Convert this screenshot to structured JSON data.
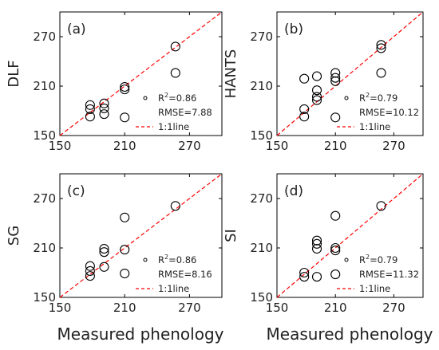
{
  "figure": {
    "xlabel_left": "Measured phenology",
    "xlabel_right": "Measured phenology"
  },
  "chart_data": [
    {
      "type": "scatter",
      "panel": "(a)",
      "ylabel": "DLF",
      "xlim": [
        150,
        300
      ],
      "ylim": [
        150,
        300
      ],
      "xticks": [
        150,
        210,
        270
      ],
      "yticks": [
        150,
        210,
        270
      ],
      "points": [
        [
          178,
          182
        ],
        [
          178,
          187
        ],
        [
          178,
          173
        ],
        [
          191,
          176
        ],
        [
          191,
          183
        ],
        [
          191,
          189
        ],
        [
          210,
          209
        ],
        [
          210,
          206
        ],
        [
          210,
          172
        ],
        [
          257,
          258
        ],
        [
          257,
          226
        ]
      ],
      "r2_sup": "2",
      "r2": "R",
      "r2_value": "=0.86",
      "rmse": "RMSE=7.88",
      "line_label": "1:1line"
    },
    {
      "type": "scatter",
      "panel": "(b)",
      "ylabel": "HANTS",
      "xlim": [
        150,
        300
      ],
      "ylim": [
        150,
        300
      ],
      "xticks": [
        150,
        210,
        270
      ],
      "yticks": [
        150,
        210,
        270
      ],
      "points": [
        [
          178,
          173
        ],
        [
          178,
          182
        ],
        [
          178,
          219
        ],
        [
          191,
          193
        ],
        [
          191,
          197
        ],
        [
          191,
          205
        ],
        [
          191,
          222
        ],
        [
          210,
          216
        ],
        [
          210,
          220
        ],
        [
          210,
          226
        ],
        [
          210,
          172
        ],
        [
          257,
          256
        ],
        [
          257,
          260
        ],
        [
          257,
          226
        ]
      ],
      "r2_sup": "2",
      "r2": "R",
      "r2_value": "=0.79",
      "rmse": "RMSE=10.12",
      "line_label": "1:1line"
    },
    {
      "type": "scatter",
      "panel": "(c)",
      "ylabel": "SG",
      "xlim": [
        150,
        300
      ],
      "ylim": [
        150,
        300
      ],
      "xticks": [
        150,
        210,
        270
      ],
      "yticks": [
        150,
        210,
        270
      ],
      "points": [
        [
          178,
          176
        ],
        [
          178,
          182
        ],
        [
          178,
          188
        ],
        [
          191,
          187
        ],
        [
          191,
          205
        ],
        [
          191,
          209
        ],
        [
          210,
          208
        ],
        [
          210,
          179
        ],
        [
          210,
          247
        ],
        [
          257,
          261
        ]
      ],
      "r2_sup": "2",
      "r2": "R",
      "r2_value": "=0.86",
      "rmse": "RMSE=8.16",
      "line_label": "1:1line"
    },
    {
      "type": "scatter",
      "panel": "(d)",
      "ylabel": "SI",
      "xlim": [
        150,
        300
      ],
      "ylim": [
        150,
        300
      ],
      "xticks": [
        150,
        210,
        270
      ],
      "yticks": [
        150,
        210,
        270
      ],
      "points": [
        [
          178,
          175
        ],
        [
          178,
          180
        ],
        [
          191,
          175
        ],
        [
          191,
          209
        ],
        [
          191,
          215
        ],
        [
          191,
          219
        ],
        [
          210,
          207
        ],
        [
          210,
          210
        ],
        [
          210,
          178
        ],
        [
          210,
          249
        ],
        [
          257,
          261
        ]
      ],
      "r2_sup": "2",
      "r2": "R",
      "r2_value": "=0.79",
      "rmse": "RMSE=11.32",
      "line_label": "1:1line"
    }
  ],
  "colors": {
    "axis": "#000000",
    "marker": "#000000",
    "line": "#ff0000"
  }
}
